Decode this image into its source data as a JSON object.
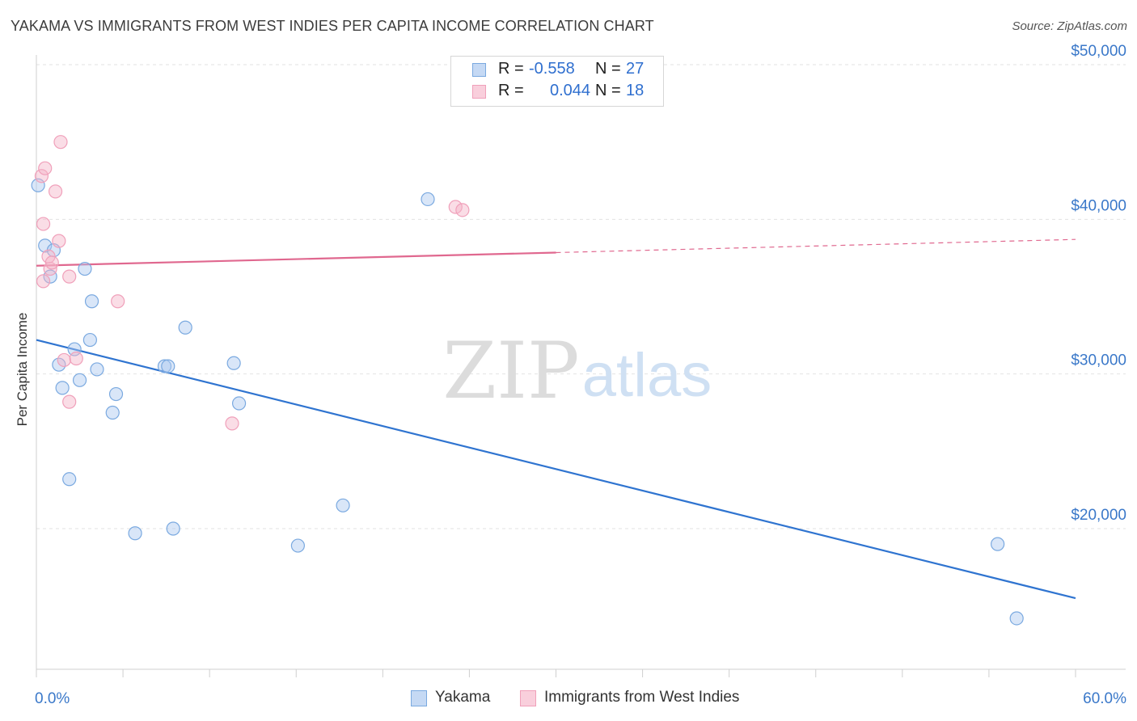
{
  "title": "YAKAMA VS IMMIGRANTS FROM WEST INDIES PER CAPITA INCOME CORRELATION CHART",
  "source": "Source: ZipAtlas.com",
  "watermark": {
    "zip": "ZIP",
    "atlas": "atlas"
  },
  "legend": {
    "rows": [
      {
        "r_label": "R =",
        "r_value": "-0.558",
        "n_label": "N =",
        "n_value": "27",
        "color": "#7aa9e0"
      },
      {
        "r_label": "R =",
        "r_value": "0.044",
        "n_label": "N =",
        "n_value": "18",
        "color": "#f0a0ba"
      }
    ]
  },
  "bottom_legend": [
    {
      "label": "Yakama",
      "color": "#7aa9e0"
    },
    {
      "label": "Immigrants from West Indies",
      "color": "#f0a0ba"
    }
  ],
  "chart_data": {
    "type": "scatter",
    "title": "YAKAMA VS IMMIGRANTS FROM WEST INDIES PER CAPITA INCOME CORRELATION CHART",
    "xlabel": "",
    "ylabel": "Per Capita Income",
    "xlim": [
      0,
      60
    ],
    "ylim": [
      10000,
      51000
    ],
    "x_tick_labels": [
      {
        "value": 0,
        "label": "0.0%"
      },
      {
        "value": 60,
        "label": "60.0%"
      }
    ],
    "y_tick_labels": [
      {
        "value": 20000,
        "label": "$20,000"
      },
      {
        "value": 30000,
        "label": "$30,000"
      },
      {
        "value": 40000,
        "label": "$40,000"
      },
      {
        "value": 50000,
        "label": "$50,000"
      }
    ],
    "grid": true,
    "series": [
      {
        "name": "Yakama",
        "color": "#7aa9e0",
        "line_color": "#2f74d0",
        "points": [
          [
            0.1,
            42200
          ],
          [
            0.5,
            38300
          ],
          [
            0.8,
            36300
          ],
          [
            1.0,
            38000
          ],
          [
            1.3,
            30600
          ],
          [
            1.5,
            29100
          ],
          [
            1.9,
            23200
          ],
          [
            2.2,
            31600
          ],
          [
            2.5,
            29600
          ],
          [
            2.8,
            36800
          ],
          [
            3.2,
            34700
          ],
          [
            3.1,
            32200
          ],
          [
            3.5,
            30300
          ],
          [
            4.4,
            27500
          ],
          [
            4.6,
            28700
          ],
          [
            5.7,
            19700
          ],
          [
            7.4,
            30500
          ],
          [
            7.6,
            30500
          ],
          [
            7.9,
            20000
          ],
          [
            8.6,
            33000
          ],
          [
            11.4,
            30700
          ],
          [
            11.7,
            28100
          ],
          [
            15.1,
            18900
          ],
          [
            17.7,
            21500
          ],
          [
            22.6,
            41300
          ],
          [
            55.5,
            19000
          ],
          [
            56.6,
            14200
          ]
        ],
        "trend": {
          "x": [
            0,
            60
          ],
          "y": [
            32200,
            15500
          ],
          "dashed_from": null
        }
      },
      {
        "name": "Immigrants from West Indies",
        "color": "#f0a0ba",
        "line_color": "#e0688f",
        "points": [
          [
            0.3,
            42800
          ],
          [
            0.4,
            39700
          ],
          [
            0.4,
            36000
          ],
          [
            0.5,
            43300
          ],
          [
            0.7,
            37600
          ],
          [
            0.8,
            36800
          ],
          [
            0.9,
            37200
          ],
          [
            1.1,
            41800
          ],
          [
            1.3,
            38600
          ],
          [
            1.4,
            45000
          ],
          [
            1.6,
            30900
          ],
          [
            1.9,
            28200
          ],
          [
            1.9,
            36300
          ],
          [
            2.3,
            31000
          ],
          [
            4.7,
            34700
          ],
          [
            11.3,
            26800
          ],
          [
            24.2,
            40800
          ],
          [
            24.6,
            40600
          ]
        ],
        "trend": {
          "x": [
            0,
            60
          ],
          "y": [
            37000,
            38700
          ],
          "dashed_from": 30
        }
      }
    ]
  }
}
